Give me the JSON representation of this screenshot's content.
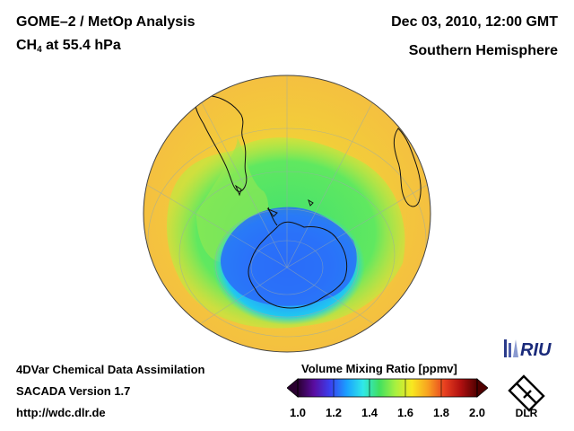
{
  "header": {
    "title": "GOME–2 / MetOp Analysis",
    "species": "CH",
    "species_sub": "4",
    "level": " at 55.4 hPa",
    "date": "Dec 03, 2010, 12:00 GMT",
    "region": "Southern Hemisphere"
  },
  "footer": {
    "line1": "4DVar Chemical Data Assimilation",
    "line2": "SACADA Version 1.7",
    "line3": "http://wdc.dlr.de"
  },
  "colorbar": {
    "title": "Volume Mixing Ratio [ppmv]",
    "ticks": [
      "1.0",
      "1.2",
      "1.4",
      "1.6",
      "1.8",
      "2.0"
    ],
    "colors": [
      "#2a0030",
      "#5a0ca0",
      "#3a40f0",
      "#1aa0ff",
      "#30e8e8",
      "#40e060",
      "#a8f040",
      "#f8e820",
      "#f8a020",
      "#e84020",
      "#b01010",
      "#500000"
    ]
  },
  "logos": {
    "riu": "RIU",
    "dlr": "DLR"
  }
}
